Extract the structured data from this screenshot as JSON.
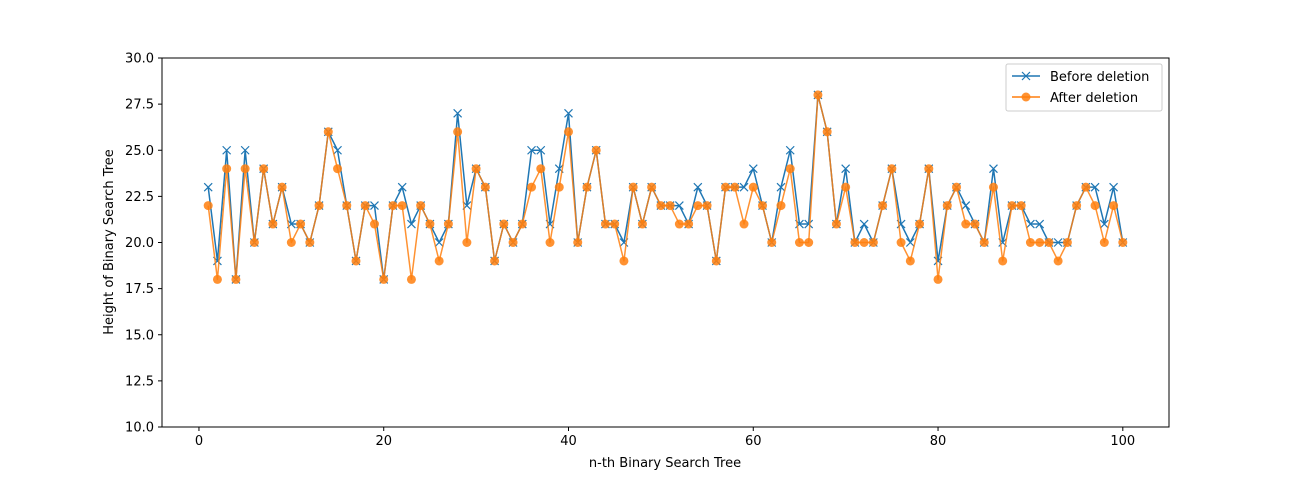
{
  "chart_data": {
    "type": "line",
    "title": "",
    "xlabel": "n-th Binary Search Tree",
    "ylabel": "Height of Binary Search Tree",
    "xlim": [
      -4,
      105
    ],
    "ylim": [
      10,
      30
    ],
    "x_ticks": [
      0,
      20,
      40,
      60,
      80,
      100
    ],
    "y_ticks": [
      10.0,
      12.5,
      15.0,
      17.5,
      20.0,
      22.5,
      25.0,
      27.5,
      30.0
    ],
    "x_tick_labels": [
      "0",
      "20",
      "40",
      "60",
      "80",
      "100"
    ],
    "y_tick_labels": [
      "10.0",
      "12.5",
      "15.0",
      "17.5",
      "20.0",
      "22.5",
      "25.0",
      "27.5",
      "30.0"
    ],
    "grid": false,
    "legend_position": "top-right",
    "x_start": 1,
    "series": [
      {
        "name": "Before deletion",
        "color": "#1f77b4",
        "marker": "x",
        "values": [
          23,
          19,
          25,
          18,
          25,
          20,
          24,
          21,
          23,
          21,
          21,
          20,
          22,
          26,
          25,
          22,
          19,
          22,
          22,
          18,
          22,
          23,
          21,
          22,
          21,
          20,
          21,
          27,
          22,
          24,
          23,
          19,
          21,
          20,
          21,
          25,
          25,
          21,
          24,
          27,
          20,
          23,
          25,
          21,
          21,
          20,
          23,
          21,
          23,
          22,
          22,
          22,
          21,
          23,
          22,
          19,
          23,
          23,
          23,
          24,
          22,
          20,
          23,
          25,
          21,
          21,
          28,
          26,
          21,
          24,
          20,
          21,
          20,
          22,
          24,
          21,
          20,
          21,
          24,
          19,
          22,
          23,
          22,
          21,
          20,
          24,
          20,
          22,
          22,
          21,
          21,
          20,
          20,
          20,
          22,
          23,
          23,
          21,
          23,
          20
        ]
      },
      {
        "name": "After deletion",
        "color": "#ff7f0e",
        "marker": "o",
        "values": [
          22,
          18,
          24,
          18,
          24,
          20,
          24,
          21,
          23,
          20,
          21,
          20,
          22,
          26,
          24,
          22,
          19,
          22,
          21,
          18,
          22,
          22,
          18,
          22,
          21,
          19,
          21,
          26,
          20,
          24,
          23,
          19,
          21,
          20,
          21,
          23,
          24,
          20,
          23,
          26,
          20,
          23,
          25,
          21,
          21,
          19,
          23,
          21,
          23,
          22,
          22,
          21,
          21,
          22,
          22,
          19,
          23,
          23,
          21,
          23,
          22,
          20,
          22,
          24,
          20,
          20,
          28,
          26,
          21,
          23,
          20,
          20,
          20,
          22,
          24,
          20,
          19,
          21,
          24,
          18,
          22,
          23,
          21,
          21,
          20,
          23,
          19,
          22,
          22,
          20,
          20,
          20,
          19,
          20,
          22,
          23,
          22,
          20,
          22,
          20
        ]
      }
    ]
  }
}
